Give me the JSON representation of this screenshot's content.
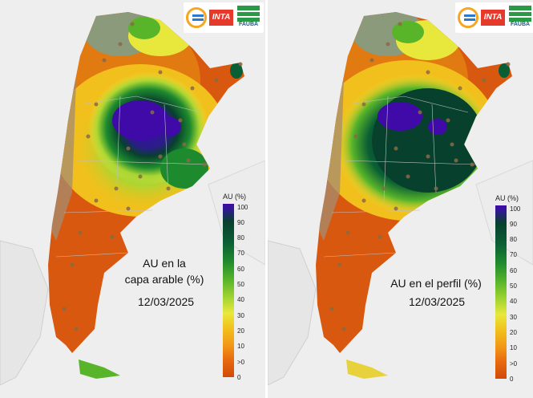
{
  "panels": [
    {
      "caption_line1": "AU en la",
      "caption_line2": "capa arable (%)",
      "date": "12/03/2025",
      "legend_title": "AU (%)"
    },
    {
      "caption_line1": "AU en el perfil (%)",
      "caption_line2": "",
      "date": "12/03/2025",
      "legend_title": "AU (%)"
    }
  ],
  "legend_ticks": [
    "100",
    "90",
    "80",
    "70",
    "60",
    "50",
    "40",
    "30",
    "20",
    "10",
    ">0",
    "0"
  ],
  "logos": {
    "inta_text": "INTA",
    "fauba_text": "FAUBA"
  },
  "colors": {
    "very_wet": "#3f0aa8",
    "wet": "#0a5e34",
    "moderate": "#58b52a",
    "dry": "#e8e83c",
    "very_dry": "#d04a08"
  }
}
